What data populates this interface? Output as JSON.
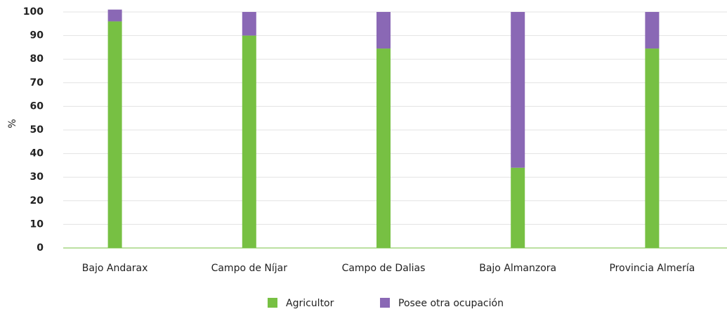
{
  "chart_data": {
    "type": "stacked_bar",
    "y_label": "%",
    "categories": [
      "Bajo Andarax",
      "Campo de Níjar",
      "Campo de Dalias",
      "Bajo Almanzora",
      "Provincia Almería"
    ],
    "series": [
      {
        "name": "Agricultor",
        "color": "#77c043",
        "values": [
          96,
          90,
          84.5,
          34,
          84.5
        ]
      },
      {
        "name": "Posee otra ocupación",
        "color": "#8a68b5",
        "values": [
          5,
          10,
          15.5,
          66,
          15.5
        ]
      }
    ],
    "ylim": [
      0,
      100
    ],
    "yticks": [
      0,
      10,
      20,
      30,
      40,
      50,
      60,
      70,
      80,
      90,
      100
    ],
    "grid": true
  }
}
